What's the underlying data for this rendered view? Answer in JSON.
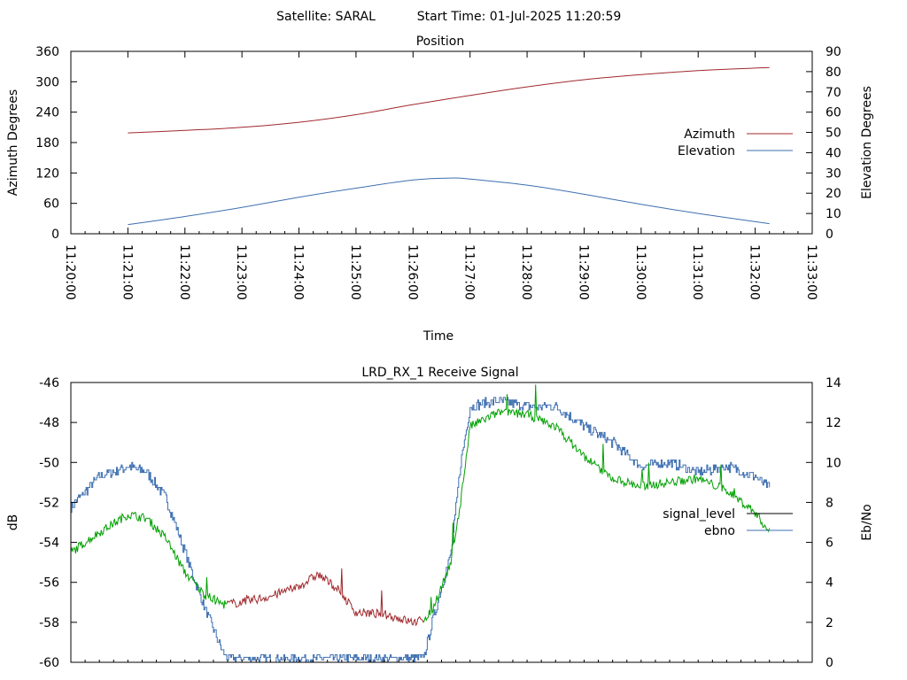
{
  "header": {
    "satellite_label": "Satellite: SARAL",
    "start_time_label": "Start Time: 01-Jul-2025 11:20:59"
  },
  "chart_data": [
    {
      "type": "line",
      "title": "Position",
      "xlabel": "Time",
      "ylabel": "Azimuth Degrees",
      "y2label": "Elevation Degrees",
      "xticks": [
        "11:20:00",
        "11:21:00",
        "11:22:00",
        "11:23:00",
        "11:24:00",
        "11:25:00",
        "11:26:00",
        "11:27:00",
        "11:28:00",
        "11:29:00",
        "11:30:00",
        "11:31:00",
        "11:32:00",
        "11:33:00"
      ],
      "xlim": [
        "11:20:00",
        "11:33:00"
      ],
      "ylim": [
        0,
        360
      ],
      "yticks": [
        0,
        60,
        120,
        180,
        240,
        300,
        360
      ],
      "y2lim": [
        0,
        90
      ],
      "y2ticks": [
        0,
        10,
        20,
        30,
        40,
        50,
        60,
        70,
        80,
        90
      ],
      "legend_position": "right",
      "series": [
        {
          "name": "Azimuth",
          "axis": "y",
          "color": "#a0282d",
          "x": [
            "11:21:00",
            "11:22:00",
            "11:23:00",
            "11:24:00",
            "11:25:00",
            "11:26:00",
            "11:27:00",
            "11:28:00",
            "11:29:00",
            "11:30:00",
            "11:31:00",
            "11:32:15"
          ],
          "values": [
            199,
            204,
            210,
            220,
            235,
            255,
            273,
            290,
            304,
            314,
            322,
            328
          ]
        },
        {
          "name": "Elevation",
          "axis": "y2",
          "color": "#3e6fb0",
          "x": [
            "11:21:00",
            "11:22:00",
            "11:23:00",
            "11:24:00",
            "11:25:00",
            "11:26:00",
            "11:26:40",
            "11:27:00",
            "11:28:00",
            "11:29:00",
            "11:30:00",
            "11:31:00",
            "11:32:15"
          ],
          "values": [
            4.5,
            8.5,
            13,
            18,
            22.5,
            26.5,
            27.5,
            27,
            24,
            19.5,
            14.5,
            10,
            5
          ]
        }
      ]
    },
    {
      "type": "line",
      "title": "LRD_RX_1 Receive Signal",
      "ylabel": "dB",
      "y2label": "Eb/No",
      "xlim": [
        "11:20:00",
        "11:33:00"
      ],
      "ylim": [
        -60,
        -46
      ],
      "yticks": [
        -60,
        -58,
        -56,
        -54,
        -52,
        -50,
        -48,
        -46
      ],
      "y2lim": [
        0,
        14
      ],
      "y2ticks": [
        0,
        2,
        4,
        6,
        8,
        10,
        12,
        14
      ],
      "legend_position": "right",
      "legend": [
        {
          "name": "signal_level",
          "color": "#000000"
        },
        {
          "name": "ebno",
          "color": "#3e6fb0"
        }
      ],
      "series": [
        {
          "name": "signal_level",
          "axis": "y",
          "color_segments": {
            "green": "#00a000",
            "red": "#a0282d"
          },
          "x": [
            "11:20:00",
            "11:20:30",
            "11:21:00",
            "11:21:20",
            "11:21:40",
            "11:22:00",
            "11:22:20",
            "11:22:40",
            "11:23:00",
            "11:23:30",
            "11:24:00",
            "11:24:20",
            "11:24:40",
            "11:25:00",
            "11:25:30",
            "11:26:00",
            "11:26:10",
            "11:26:20",
            "11:26:40",
            "11:26:50",
            "11:27:00",
            "11:27:30",
            "11:28:00",
            "11:28:30",
            "11:29:00",
            "11:29:30",
            "11:30:00",
            "11:30:30",
            "11:31:00",
            "11:31:30",
            "11:32:00",
            "11:32:15"
          ],
          "values": [
            -54.5,
            -53.5,
            -52.6,
            -52.8,
            -53.8,
            -55.5,
            -56.6,
            -57.1,
            -57.0,
            -56.7,
            -56.2,
            -55.6,
            -56.3,
            -57.5,
            -57.6,
            -58.0,
            -57.9,
            -57.4,
            -55.0,
            -52.0,
            -48.2,
            -47.5,
            -47.6,
            -48.2,
            -49.7,
            -50.8,
            -51.2,
            -51.0,
            -50.8,
            -51.4,
            -52.5,
            -53.5
          ]
        },
        {
          "name": "ebno",
          "axis": "y2",
          "color": "#3e6fb0",
          "x": [
            "11:20:00",
            "11:20:30",
            "11:21:00",
            "11:21:20",
            "11:21:40",
            "11:22:00",
            "11:22:20",
            "11:22:40",
            "11:22:45",
            "11:26:10",
            "11:26:20",
            "11:26:40",
            "11:26:50",
            "11:27:00",
            "11:27:30",
            "11:28:00",
            "11:28:30",
            "11:29:00",
            "11:29:30",
            "11:30:00",
            "11:30:30",
            "11:31:00",
            "11:31:30",
            "11:32:00",
            "11:32:15"
          ],
          "values": [
            7.8,
            9.3,
            9.8,
            9.5,
            8.2,
            5.5,
            2.8,
            0.5,
            0,
            0,
            2.0,
            5.5,
            10.0,
            12.8,
            13.1,
            12.8,
            12.8,
            11.8,
            11.0,
            9.8,
            10.0,
            9.5,
            9.8,
            9.3,
            8.7
          ]
        }
      ]
    }
  ]
}
